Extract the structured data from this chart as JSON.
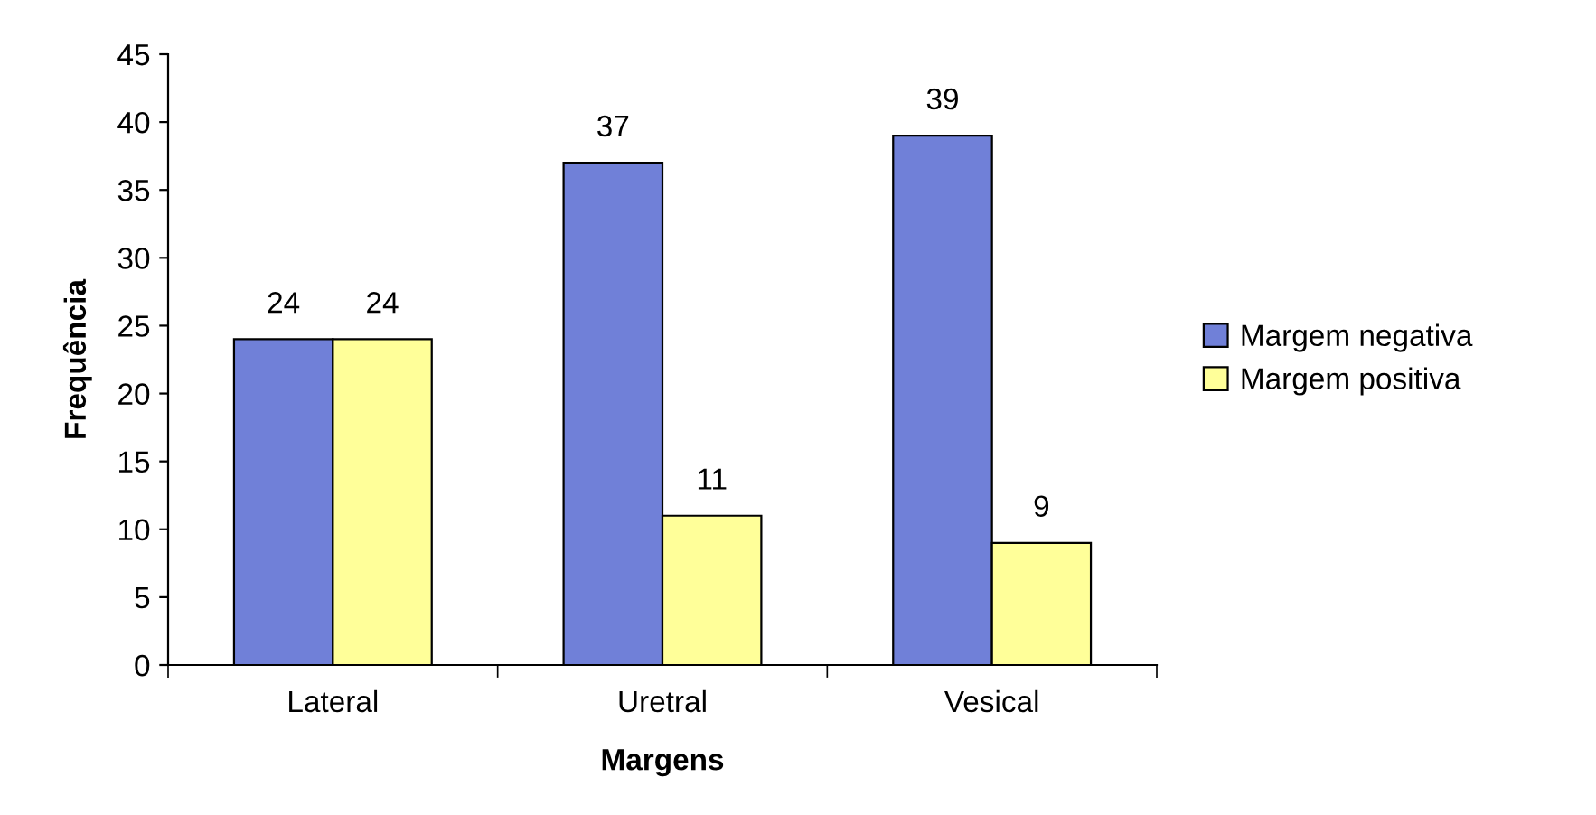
{
  "chart_data": {
    "type": "bar",
    "xlabel": "Margens",
    "ylabel": "Frequência",
    "categories": [
      "Lateral",
      "Uretral",
      "Vesical"
    ],
    "series": [
      {
        "name": "Margem negativa",
        "color": "#7080d8",
        "values": [
          24,
          37,
          39
        ]
      },
      {
        "name": "Margem positiva",
        "color": "#ffff99",
        "values": [
          24,
          11,
          9
        ]
      }
    ],
    "ylim": [
      0,
      45
    ],
    "yticks": [
      0,
      5,
      10,
      15,
      20,
      25,
      30,
      35,
      40,
      45
    ],
    "data_labels": true,
    "legend": "right",
    "grid": false
  }
}
